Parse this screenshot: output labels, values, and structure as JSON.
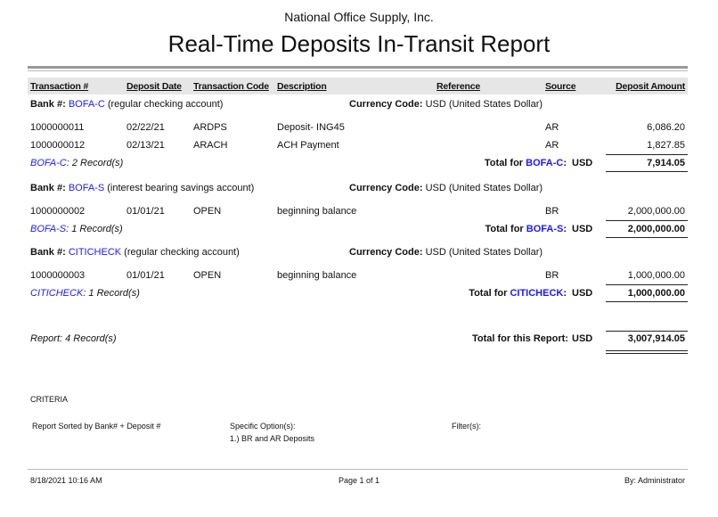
{
  "company": "National Office Supply, Inc.",
  "title": "Real-Time Deposits In-Transit Report",
  "columns": {
    "transaction": "Transaction #",
    "date": "Deposit Date",
    "code": "Transaction Code",
    "description": "Description",
    "reference": "Reference",
    "source": "Source",
    "amount": "Deposit Amount"
  },
  "labels": {
    "bank": "Bank #:",
    "currency": "Currency Code:",
    "total_for": "Total for",
    "currency_value": "USD (United States Dollar)",
    "usd": "USD"
  },
  "groups": [
    {
      "bank": "BOFA-C",
      "bank_desc": "(regular checking account)",
      "records": ": 2 Record(s)",
      "total": "7,914.05",
      "rows": [
        {
          "transaction": "1000000011",
          "date": "02/22/21",
          "code": "ARDPS",
          "description": "Deposit- ING45",
          "reference": "",
          "source": "AR",
          "amount": "6,086.20"
        },
        {
          "transaction": "1000000012",
          "date": "02/13/21",
          "code": "ARACH",
          "description": "ACH Payment",
          "reference": "",
          "source": "AR",
          "amount": "1,827.85"
        }
      ]
    },
    {
      "bank": "BOFA-S",
      "bank_desc": "(interest bearing savings account)",
      "records": ": 1 Record(s)",
      "total": "2,000,000.00",
      "rows": [
        {
          "transaction": "1000000002",
          "date": "01/01/21",
          "code": "OPEN",
          "description": "beginning balance",
          "reference": "",
          "source": "BR",
          "amount": "2,000,000.00"
        }
      ]
    },
    {
      "bank": "CITICHECK",
      "bank_desc": "(regular checking account)",
      "records": ": 1 Record(s)",
      "total": "1,000,000.00",
      "rows": [
        {
          "transaction": "1000000003",
          "date": "01/01/21",
          "code": "OPEN",
          "description": "beginning balance",
          "reference": "",
          "source": "BR",
          "amount": "1,000,000.00"
        }
      ]
    }
  ],
  "report_total": {
    "records": "Report: 4 Record(s)",
    "label": "Total for this Report:",
    "currency": "USD",
    "amount": "3,007,914.05"
  },
  "criteria": {
    "heading": "CRITERIA",
    "sorted": "Report Sorted by Bank# + Deposit #",
    "options_label": "Specific Option(s):",
    "options": "1.) BR and AR Deposits",
    "filters_label": "Filter(s):"
  },
  "footer": {
    "datetime": "8/18/2021 10:16 AM",
    "page": "Page 1 of 1",
    "user": "By: Administrator"
  },
  "colors": {
    "link": "#1a1aff",
    "header_band": "#e6e6e6"
  }
}
